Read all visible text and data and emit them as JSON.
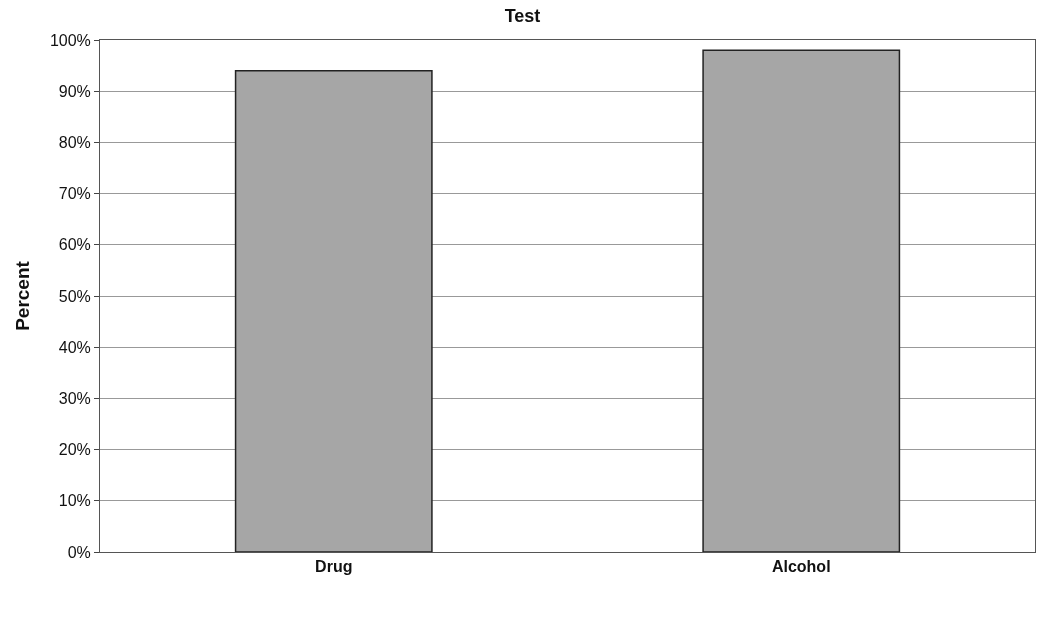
{
  "chart_data": {
    "type": "bar",
    "title": "Test",
    "ylabel": "Percent",
    "categories": [
      "Drug",
      "Alcohol"
    ],
    "values": [
      94,
      98
    ],
    "color": "#a6a6a6",
    "ylim": [
      0,
      100
    ],
    "yticks": [
      {
        "value": 0,
        "label": "0%"
      },
      {
        "value": 10,
        "label": "10%"
      },
      {
        "value": 20,
        "label": "20%"
      },
      {
        "value": 30,
        "label": "30%"
      },
      {
        "value": 40,
        "label": "40%"
      },
      {
        "value": 50,
        "label": "50%"
      },
      {
        "value": 60,
        "label": "60%"
      },
      {
        "value": 70,
        "label": "70%"
      },
      {
        "value": 80,
        "label": "80%"
      },
      {
        "value": 90,
        "label": "90%"
      },
      {
        "value": 100,
        "label": "100%"
      }
    ],
    "grid": "y"
  }
}
